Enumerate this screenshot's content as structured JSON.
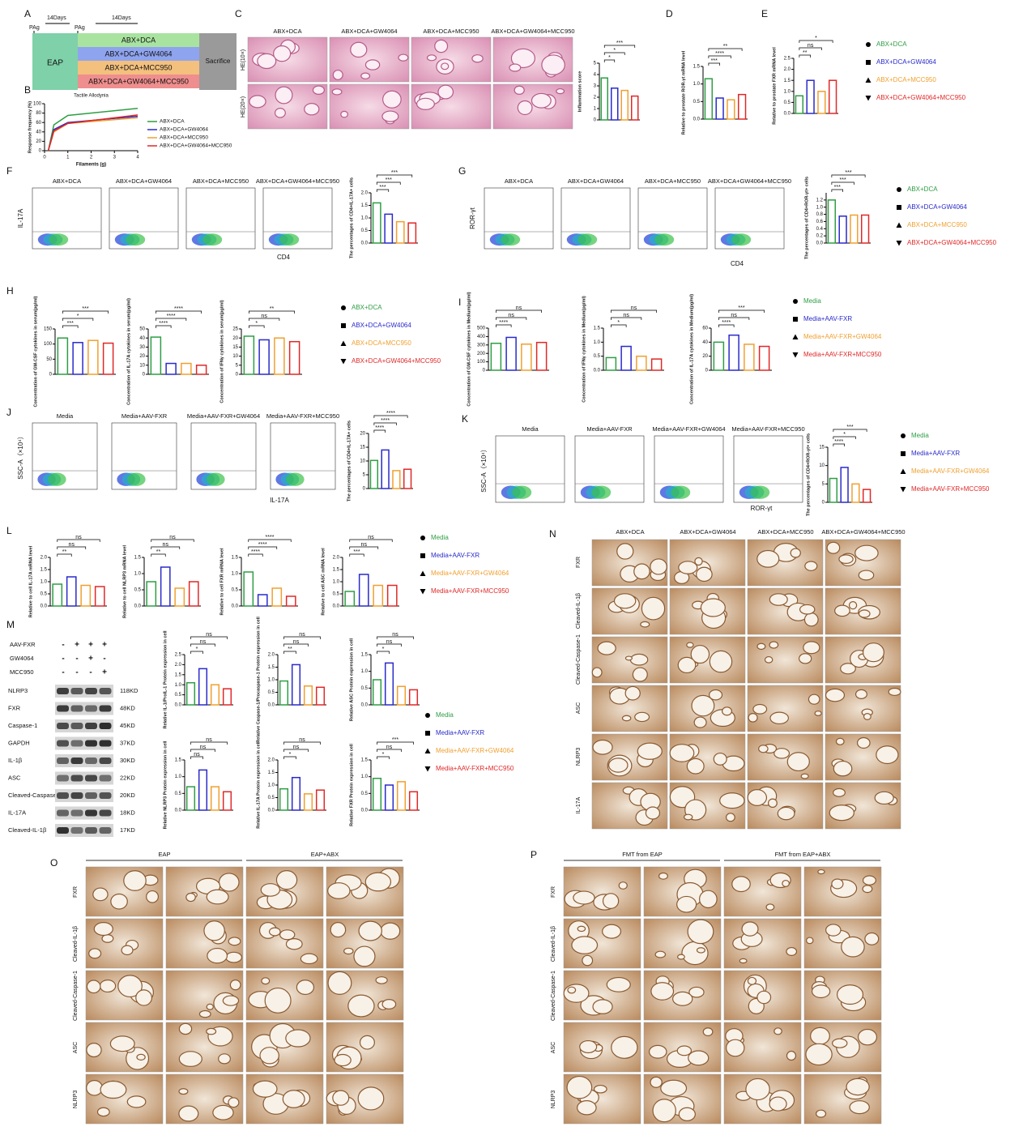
{
  "panel_labels": [
    "A",
    "B",
    "C",
    "D",
    "E",
    "F",
    "G",
    "H",
    "I",
    "J",
    "K",
    "L",
    "M",
    "N",
    "O",
    "P"
  ],
  "schema": {
    "days": [
      "14Days",
      "14Days"
    ],
    "pag": [
      "PAg",
      "PAg"
    ],
    "eap": "EAP",
    "groups": [
      "ABX+DCA",
      "ABX+DCA+GW4064",
      "ABX+DCA+MCC950",
      "ABX+DCA+GW4064+MCC950"
    ],
    "sacrifice": "Sacrifice"
  },
  "legend_abx": [
    "ABX+DCA",
    "ABX+DCA+GW4064",
    "ABX+DCA+MCC950",
    "ABX+DCA+GW4064+MCC950"
  ],
  "legend_media": [
    "Media",
    "Media+AAV-FXR",
    "Media+AAV-FXR+GW4064",
    "Media+AAV-FXR+MCC950"
  ],
  "group_colors": [
    "#2e9e44",
    "#2a2acb",
    "#f0a030",
    "#e02828"
  ],
  "panel_c": {
    "columns": [
      "ABX+DCA",
      "ABX+DCA+GW4064",
      "ABX+DCA+MCC950",
      "ABX+DCA+GW4064+MCC950"
    ],
    "rows": [
      "HE(10×)",
      "HE(20×)"
    ]
  },
  "panel_f": {
    "columns": [
      "ABX+DCA",
      "ABX+DCA+GW4064",
      "ABX+DCA+MCC950",
      "ABX+DCA+GW4064+MCC950"
    ],
    "y_axis": "IL-17A",
    "x_axis": "CD4"
  },
  "panel_g": {
    "columns": [
      "ABX+DCA",
      "ABX+DCA+GW4064",
      "ABX+DCA+MCC950",
      "ABX+DCA+GW4064+MCC950"
    ],
    "y_axis": "ROR-γt",
    "x_axis": "CD4"
  },
  "panel_j": {
    "columns": [
      "Media",
      "Media+AAV-FXR",
      "Media+AAV-FXR+GW4064",
      "Media+AAV-FXR+MCC950"
    ],
    "y_axis": "SSC-A（×10⁴）",
    "x_axis": "IL-17A"
  },
  "panel_k": {
    "columns": [
      "Media",
      "Media+AAV-FXR",
      "Media+AAV-FXR+GW4064",
      "Media+AAV-FXR+MCC950"
    ],
    "y_axis": "SSC-A（×10⁴）",
    "x_axis": "ROR-γt"
  },
  "panel_m_blot": {
    "treatments": [
      "AAV-FXR",
      "GW4064",
      "MCC950"
    ],
    "signs": [
      [
        "-",
        "+",
        "+",
        "+"
      ],
      [
        "-",
        "-",
        "+",
        "-"
      ],
      [
        "-",
        "-",
        "-",
        "+"
      ]
    ],
    "bands": [
      [
        "NLRP3",
        "118KD"
      ],
      [
        "FXR",
        "48KD"
      ],
      [
        "Caspase-1",
        "45KD"
      ],
      [
        "GAPDH",
        "37KD"
      ],
      [
        "IL-1β",
        "30KD"
      ],
      [
        "ASC",
        "22KD"
      ],
      [
        "Cleaved-Caspase-1",
        "20KD"
      ],
      [
        "IL-17A",
        "18KD"
      ],
      [
        "Cleaved-IL-1β",
        "17KD"
      ]
    ]
  },
  "panel_n": {
    "columns": [
      "ABX+DCA",
      "ABX+DCA+GW4064",
      "ABX+DCA+MCC950",
      "ABX+DCA+GW4064+MCC950"
    ],
    "rows": [
      "FXR",
      "Cleaved-IL-1β",
      "Cleaved-Caspase-1",
      "ASC",
      "NLRP3",
      "IL-17A"
    ]
  },
  "panel_o": {
    "groups": [
      "EAP",
      "EAP+ABX"
    ],
    "rows": [
      "FXR",
      "Cleaved-IL-1β",
      "Cleaved-Caspase-1",
      "ASC",
      "NLRP3"
    ]
  },
  "panel_p": {
    "groups": [
      "FMT from EAP",
      "FMT from EAP+ABX"
    ],
    "rows": [
      "FXR",
      "Cleaved-IL-1β",
      "Cleaved-Caspase-1",
      "ASC",
      "NLRP3"
    ]
  },
  "chart_data": [
    {
      "type": "line",
      "title": "Tactile Allodynia",
      "x_label": "Filaments (g)",
      "y_label": "Response frequency (%)",
      "x": [
        0.16,
        0.4,
        1,
        4
      ],
      "xlim": [
        0,
        4
      ],
      "xticks": [
        0,
        1,
        2,
        3,
        4
      ],
      "ylim": [
        0,
        100
      ],
      "yticks": [
        0,
        20,
        40,
        60,
        80,
        100
      ],
      "series": [
        {
          "name": "ABX+DCA",
          "color": "#2e9e44",
          "values": [
            0,
            55,
            75,
            90
          ]
        },
        {
          "name": "ABX+DCA+GW4064",
          "color": "#2a2acb",
          "values": [
            0,
            45,
            60,
            73
          ]
        },
        {
          "name": "ABX+DCA+MCC950",
          "color": "#f0a030",
          "values": [
            0,
            40,
            58,
            70
          ]
        },
        {
          "name": "ABX+DCA+GW4064+MCC950",
          "color": "#e02828",
          "values": [
            0,
            42,
            58,
            76
          ]
        }
      ]
    },
    {
      "type": "bar",
      "y_label": "Inflammation score",
      "values": [
        3.7,
        2.8,
        2.6,
        2.1
      ],
      "ylim": [
        0,
        5
      ],
      "yticks": [
        0,
        1,
        2,
        3,
        4,
        5
      ],
      "sig": [
        "*",
        "*",
        "***"
      ]
    },
    {
      "type": "bar",
      "y_label": "Relative to prostate ROR-γt mRNA level",
      "values": [
        1.15,
        0.6,
        0.55,
        0.7
      ],
      "ylim": [
        0,
        1.5
      ],
      "yticks": [
        {
          "value": 0,
          "label": "0.0"
        },
        0.5,
        {
          "value": 1,
          "label": "1.0"
        },
        1.5
      ],
      "sig": [
        "***",
        "****",
        "**"
      ]
    },
    {
      "type": "bar",
      "y_label": "Relative to prostate FXR mRNA level",
      "values": [
        0.8,
        1.5,
        1.0,
        1.5
      ],
      "ylim": [
        0,
        2.5
      ],
      "yticks": [
        {
          "value": 0,
          "label": "0.0"
        },
        0.5,
        {
          "value": 1,
          "label": "1.0"
        },
        1.5,
        {
          "value": 2,
          "label": "2.0"
        },
        2.5
      ],
      "sig": [
        "**",
        "ns",
        "*"
      ]
    },
    {
      "type": "bar",
      "y_label": "The percentages of CD4+IL-17A+ cells",
      "values": [
        1.6,
        1.15,
        0.85,
        0.8
      ],
      "ylim": [
        0,
        2
      ],
      "yticks": [
        {
          "value": 0,
          "label": "0.0"
        },
        0.5,
        {
          "value": 1,
          "label": "1.0"
        },
        1.5,
        {
          "value": 2,
          "label": "2.0"
        }
      ],
      "sig": [
        "***",
        "***",
        "***"
      ]
    },
    {
      "type": "bar",
      "y_label": "The percentages of CD4+ROR-γt+ cells",
      "values": [
        1.2,
        0.75,
        0.78,
        0.78
      ],
      "ylim": [
        0,
        1.4
      ],
      "yticks": [
        {
          "value": 0,
          "label": "0.0"
        },
        0.2,
        0.4,
        0.6,
        0.8,
        {
          "value": 1,
          "label": "1.0"
        },
        1.2
      ],
      "sig": [
        "***",
        "***",
        "***"
      ]
    },
    {
      "type": "bar",
      "y_label": "Concentration of GM-CSF cytokines in serum(pg/ml)",
      "values": [
        120,
        105,
        112,
        103
      ],
      "ylim": [
        0,
        150
      ],
      "yticks": [
        0,
        50,
        100,
        150
      ],
      "sig": [
        "***",
        "*",
        "***"
      ]
    },
    {
      "type": "bar",
      "y_label": "Concentration of IL-17A cytokines in serum(pg/ml)",
      "values": [
        41,
        12,
        12,
        10
      ],
      "ylim": [
        0,
        50
      ],
      "yticks": [
        0,
        10,
        20,
        30,
        40,
        50
      ],
      "sig": [
        "****",
        "****",
        "****"
      ]
    },
    {
      "type": "bar",
      "y_label": "Concentration of IFNγ cytokines in serum(pg/ml)",
      "values": [
        21,
        19,
        20,
        18
      ],
      "ylim": [
        0,
        25
      ],
      "yticks": [
        0,
        5,
        10,
        15,
        20,
        25
      ],
      "sig": [
        "*",
        "ns",
        "**"
      ]
    },
    {
      "type": "bar",
      "y_label": "Concentration of GM-CSF cytokines in Medium(pg/ml)",
      "values": [
        320,
        390,
        310,
        330
      ],
      "ylim": [
        0,
        500
      ],
      "yticks": [
        0,
        100,
        200,
        300,
        400,
        500
      ],
      "sig": [
        "****",
        "ns",
        "ns"
      ]
    },
    {
      "type": "bar",
      "y_label": "Concentration of IFNγ cytokines in Medium(pg/ml)",
      "values": [
        0.45,
        0.85,
        0.5,
        0.4
      ],
      "ylim": [
        0,
        1.5
      ],
      "yticks": [
        {
          "value": 0,
          "label": "0.0"
        },
        0.5,
        {
          "value": 1,
          "label": "1.0"
        },
        1.5
      ],
      "sig": [
        "*",
        "ns",
        "ns"
      ]
    },
    {
      "type": "bar",
      "y_label": "Concentration of IL-17A cytokines in Medium(pg/ml)",
      "values": [
        40,
        50,
        37,
        34
      ],
      "ylim": [
        0,
        60
      ],
      "yticks": [
        0,
        20,
        40,
        60
      ],
      "sig": [
        "****",
        "ns",
        "***"
      ]
    },
    {
      "type": "bar",
      "y_label": "The percentages of CD4+IL-17A+ cells",
      "values": [
        10.2,
        14,
        6.5,
        7
      ],
      "ylim": [
        0,
        20
      ],
      "yticks": [
        0,
        5,
        10,
        15,
        20
      ],
      "sig": [
        "****",
        "****",
        "****"
      ]
    },
    {
      "type": "bar",
      "y_label": "The percentages of CD4+ROR-γt+ cells",
      "values": [
        6.5,
        9.5,
        5,
        3.5
      ],
      "ylim": [
        0,
        15
      ],
      "yticks": [
        0,
        5,
        10,
        15
      ],
      "sig": [
        "****",
        "*",
        "***"
      ]
    },
    {
      "type": "bar",
      "y_label": "Relative to cell IL-17A mRNA level",
      "values": [
        0.9,
        1.2,
        0.85,
        0.8
      ],
      "ylim": [
        0,
        2
      ],
      "yticks": [
        {
          "value": 0,
          "label": "0.0"
        },
        0.5,
        {
          "value": 1,
          "label": "1.0"
        },
        1.5,
        {
          "value": 2,
          "label": "2.0"
        }
      ],
      "sig": [
        "**",
        "ns",
        "ns"
      ]
    },
    {
      "type": "bar",
      "y_label": "Relative to cell NLRP3 mRNA level",
      "values": [
        0.75,
        1.2,
        0.55,
        0.75
      ],
      "ylim": [
        0,
        1.5
      ],
      "yticks": [
        {
          "value": 0,
          "label": "0.0"
        },
        0.5,
        {
          "value": 1,
          "label": "1.0"
        },
        1.5
      ],
      "sig": [
        "**",
        "ns",
        "ns"
      ]
    },
    {
      "type": "bar",
      "y_label": "Relative to cell FXR mRNA level",
      "values": [
        1.05,
        0.35,
        0.55,
        0.3
      ],
      "ylim": [
        0,
        1.5
      ],
      "yticks": [
        {
          "value": 0,
          "label": "0.0"
        },
        0.5,
        {
          "value": 1,
          "label": "1.0"
        },
        1.5
      ],
      "sig": [
        "****",
        "****",
        "****"
      ]
    },
    {
      "type": "bar",
      "y_label": "Relative to cell ASC mRNA level",
      "values": [
        0.6,
        1.3,
        0.85,
        0.85
      ],
      "ylim": [
        0,
        2
      ],
      "yticks": [
        {
          "value": 0,
          "label": "0.0"
        },
        0.5,
        {
          "value": 1,
          "label": "1.0"
        },
        1.5,
        {
          "value": 2,
          "label": "2.0"
        }
      ],
      "sig": [
        "***",
        "ns",
        "ns"
      ]
    },
    {
      "type": "bar",
      "y_label": "Relative IL-1/ProIL-1 Protein expression in cell",
      "values": [
        1.1,
        1.8,
        1.0,
        0.8
      ],
      "ylim": [
        0,
        2.5
      ],
      "yticks": [
        {
          "value": 0,
          "label": "0.0"
        },
        0.5,
        {
          "value": 1,
          "label": "1.0"
        },
        1.5,
        {
          "value": 2,
          "label": "2.0"
        },
        2.5
      ],
      "sig": [
        "*",
        "ns",
        "ns"
      ]
    },
    {
      "type": "bar",
      "y_label": "Relative Caspase-1/Procaspase-1 Protein expression in cell",
      "values": [
        0.95,
        1.6,
        0.75,
        0.7
      ],
      "ylim": [
        0,
        2
      ],
      "yticks": [
        {
          "value": 0,
          "label": "0.0"
        },
        0.5,
        {
          "value": 1,
          "label": "1.0"
        },
        1.5,
        {
          "value": 2,
          "label": "2.0"
        }
      ],
      "sig": [
        "**",
        "ns",
        "ns"
      ]
    },
    {
      "type": "bar",
      "y_label": "Relative ASC Protein expression in cell",
      "values": [
        0.75,
        1.25,
        0.55,
        0.45
      ],
      "ylim": [
        0,
        1.5
      ],
      "yticks": [
        {
          "value": 0,
          "label": "0.0"
        },
        0.5,
        {
          "value": 1,
          "label": "1.0"
        },
        1.5
      ],
      "sig": [
        "*",
        "ns",
        "ns"
      ]
    },
    {
      "type": "bar",
      "y_label": "Relative NLRP3 Protein expression in cell",
      "values": [
        0.7,
        1.2,
        0.7,
        0.55
      ],
      "ylim": [
        0,
        1.5
      ],
      "yticks": [
        {
          "value": 0,
          "label": "0.0"
        },
        0.5,
        {
          "value": 1,
          "label": "1.0"
        },
        1.5
      ],
      "sig": [
        "ns",
        "ns",
        "ns"
      ]
    },
    {
      "type": "bar",
      "y_label": "Relative IL-17A Protein expression in cell",
      "values": [
        0.85,
        1.3,
        0.65,
        0.8
      ],
      "ylim": [
        0,
        2
      ],
      "yticks": [
        {
          "value": 0,
          "label": "0.0"
        },
        0.5,
        {
          "value": 1,
          "label": "1.0"
        },
        1.5,
        {
          "value": 2,
          "label": "2.0"
        }
      ],
      "sig": [
        "*",
        "ns",
        "ns"
      ]
    },
    {
      "type": "bar",
      "y_label": "Relative FXR Protein expression in cell",
      "values": [
        0.95,
        0.75,
        0.85,
        0.55
      ],
      "ylim": [
        0,
        1.5
      ],
      "yticks": [
        {
          "value": 0,
          "label": "0.0"
        },
        0.5,
        {
          "value": 1,
          "label": "1.0"
        },
        1.5
      ],
      "sig": [
        "*",
        "ns",
        "***"
      ]
    }
  ]
}
